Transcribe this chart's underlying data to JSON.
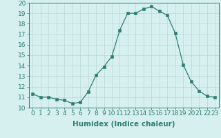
{
  "x": [
    0,
    1,
    2,
    3,
    4,
    5,
    6,
    7,
    8,
    9,
    10,
    11,
    12,
    13,
    14,
    15,
    16,
    17,
    18,
    19,
    20,
    21,
    22,
    23
  ],
  "y": [
    11.3,
    11.0,
    11.0,
    10.8,
    10.7,
    10.4,
    10.5,
    11.5,
    13.1,
    13.9,
    14.9,
    17.4,
    19.0,
    19.0,
    19.4,
    19.65,
    19.2,
    18.8,
    17.1,
    14.1,
    12.5,
    11.6,
    11.1,
    11.0
  ],
  "line_color": "#2e7d6e",
  "marker_color": "#2e7d6e",
  "bg_color": "#d6f0ef",
  "grid_color": "#b8d8d5",
  "xlabel": "Humidex (Indice chaleur)",
  "xlim": [
    -0.5,
    23.5
  ],
  "ylim": [
    10,
    20
  ],
  "yticks": [
    10,
    11,
    12,
    13,
    14,
    15,
    16,
    17,
    18,
    19,
    20
  ],
  "xticks": [
    0,
    1,
    2,
    3,
    4,
    5,
    6,
    7,
    8,
    9,
    10,
    11,
    12,
    13,
    14,
    15,
    16,
    17,
    18,
    19,
    20,
    21,
    22,
    23
  ],
  "tick_color": "#2e7d6e",
  "label_color": "#2e7d6e",
  "font_size": 6.5,
  "xlabel_font_size": 7.5
}
